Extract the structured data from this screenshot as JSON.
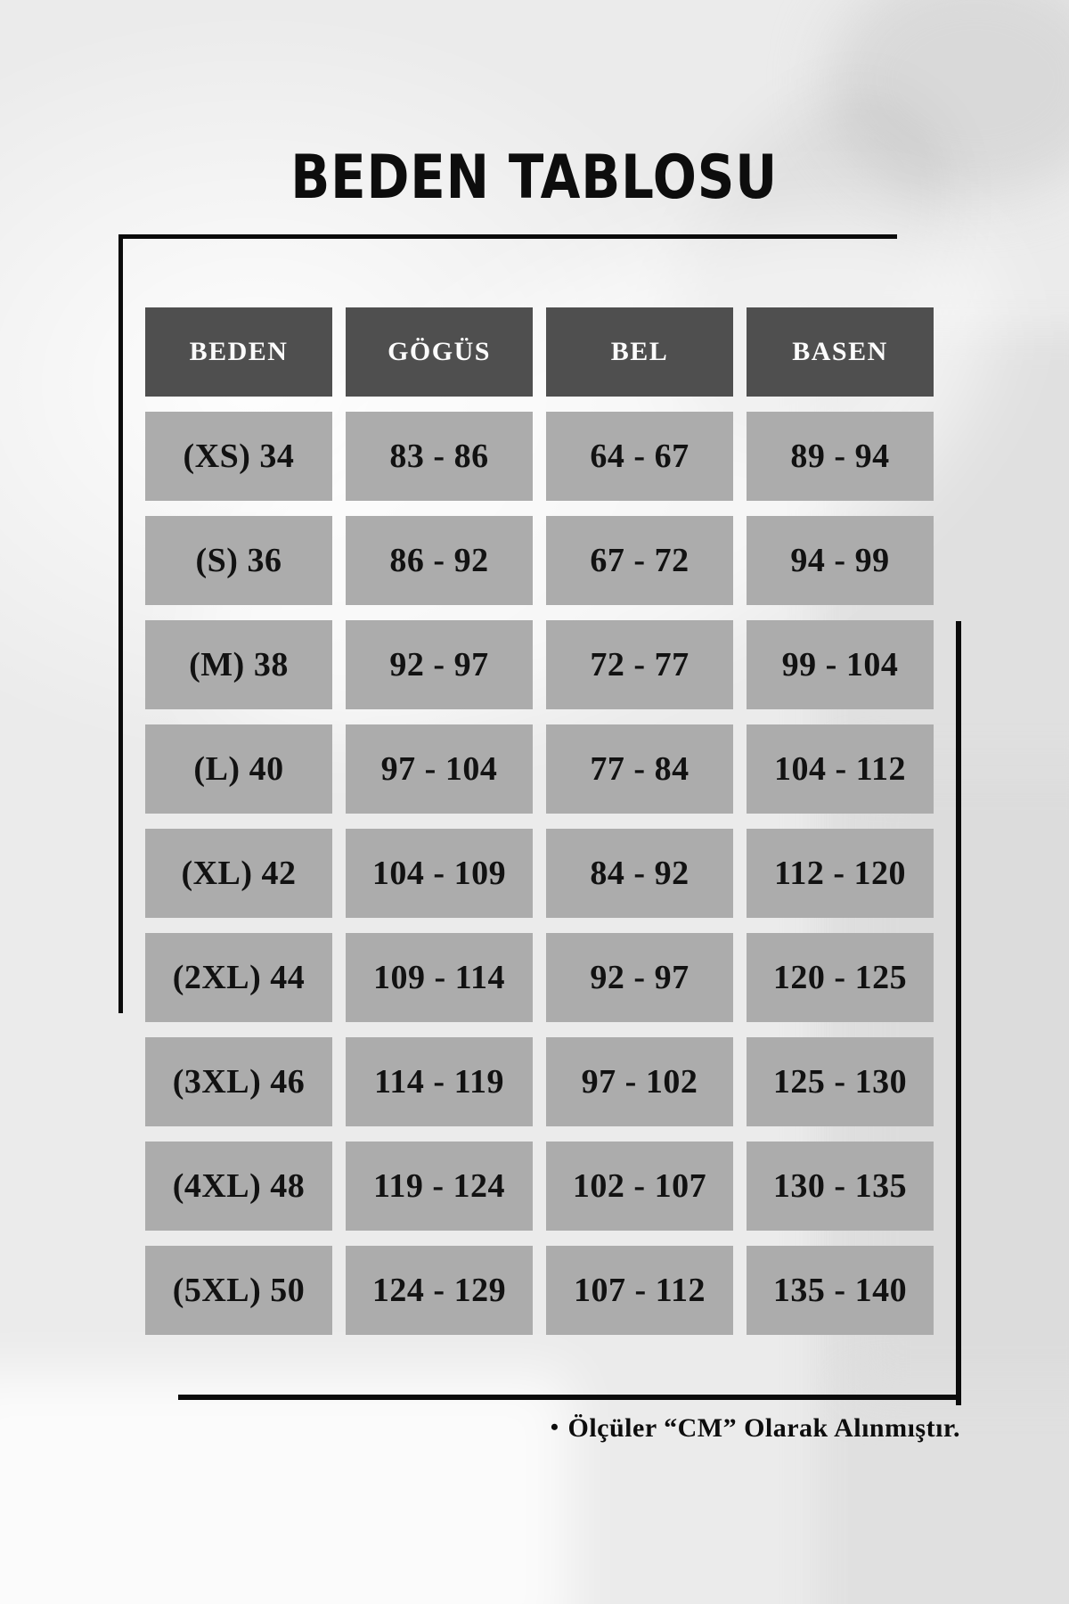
{
  "title": "BEDEN TABLOSU",
  "table": {
    "headers": [
      "BEDEN",
      "GÖGÜS",
      "BEL",
      "BASEN"
    ],
    "rows": [
      [
        "(XS) 34",
        "83 - 86",
        "64 - 67",
        "89 - 94"
      ],
      [
        "(S) 36",
        "86 - 92",
        "67 - 72",
        "94 - 99"
      ],
      [
        "(M) 38",
        "92 - 97",
        "72 - 77",
        "99 - 104"
      ],
      [
        "(L) 40",
        "97 - 104",
        "77 - 84",
        "104 - 112"
      ],
      [
        "(XL) 42",
        "104 - 109",
        "84 - 92",
        "112 - 120"
      ],
      [
        "(2XL) 44",
        "109 - 114",
        "92 - 97",
        "120 - 125"
      ],
      [
        "(3XL) 46",
        "114 - 119",
        "97 - 102",
        "125 - 130"
      ],
      [
        "(4XL) 48",
        "119 - 124",
        "102 - 107",
        "130 - 135"
      ],
      [
        "(5XL) 50",
        "124 - 129",
        "107 - 112",
        "135 - 140"
      ]
    ]
  },
  "footer": {
    "bullet": "•",
    "note": "Ölçüler “CM” Olarak Alınmıştır."
  },
  "colors": {
    "header_bg": "#4f4f4f",
    "header_text": "#fbfbfb",
    "cell_bg": "#acacac",
    "cell_text": "#121212",
    "frame_line": "#0b0b0b",
    "title_text": "#0d0d0d"
  }
}
